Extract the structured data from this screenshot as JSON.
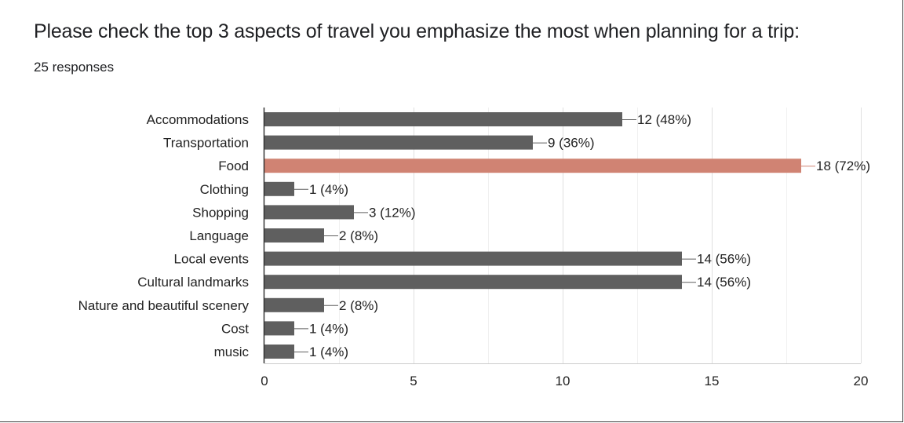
{
  "question": {
    "title": "Please check the top 3 aspects of travel you emphasize the most when planning for a trip:",
    "responses": "25 responses"
  },
  "colors": {
    "bar": "#5f5f5f",
    "highlight": "#d08373",
    "grid": "#e0e0e0",
    "axis": "#333333",
    "text": "#222222",
    "highlight_text": "#666666"
  },
  "chart_data": {
    "type": "bar",
    "orientation": "horizontal",
    "categories": [
      "Accommodations",
      "Transportation",
      "Food",
      "Clothing",
      "Shopping",
      "Language",
      "Local events",
      "Cultural landmarks",
      "Nature and beautiful scenery",
      "Cost",
      "music"
    ],
    "values": [
      12,
      9,
      18,
      1,
      3,
      2,
      14,
      14,
      2,
      1,
      1
    ],
    "data_labels": [
      "12 (48%)",
      "9 (36%)",
      "18 (72%)",
      "1 (4%)",
      "3 (12%)",
      "2 (8%)",
      "14 (56%)",
      "14 (56%)",
      "2 (8%)",
      "1 (4%)",
      "1 (4%)"
    ],
    "highlight_index": 2,
    "xlim": [
      0,
      20
    ],
    "xticks": [
      0,
      5,
      10,
      15,
      20
    ],
    "grid": true,
    "title": "",
    "xlabel": "",
    "ylabel": ""
  }
}
